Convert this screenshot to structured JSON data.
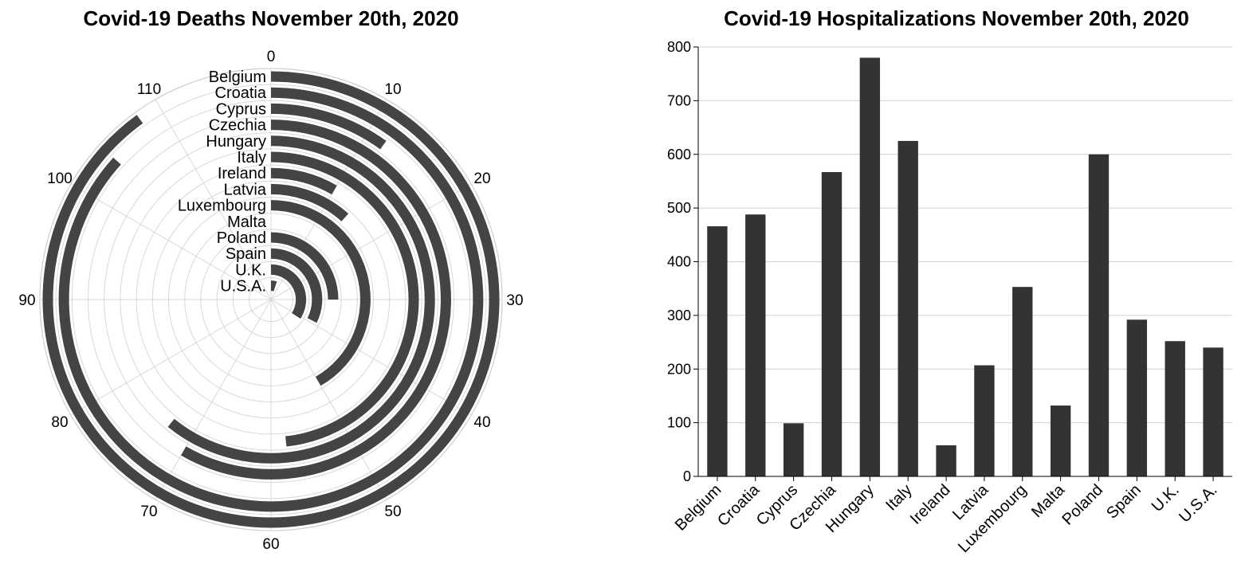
{
  "chart_data": [
    {
      "type": "radial-bar",
      "title": "Covid-19 Deaths November 20th, 2020",
      "categories": [
        "Belgium",
        "Croatia",
        "Cyprus",
        "Czechia",
        "Hungary",
        "Italy",
        "Ireland",
        "Latvia",
        "Luxembourg",
        "Malta",
        "Poland",
        "Spain",
        "U.K.",
        "U.S.A."
      ],
      "values": [
        108,
        104,
        12,
        70,
        73,
        58,
        10,
        14,
        50,
        0,
        30,
        39,
        41,
        6
      ],
      "angle_ticks": [
        0,
        10,
        20,
        30,
        40,
        50,
        60,
        70,
        80,
        90,
        100,
        110
      ],
      "angle_max": 120,
      "bar_color": "#444444",
      "grid": true
    },
    {
      "type": "bar",
      "title": "Covid-19 Hospitalizations November 20th, 2020",
      "categories": [
        "Belgium",
        "Croatia",
        "Cyprus",
        "Czechia",
        "Hungary",
        "Italy",
        "Ireland",
        "Latvia",
        "Luxembourg",
        "Malta",
        "Poland",
        "Spain",
        "U.K.",
        "U.S.A."
      ],
      "values": [
        466,
        488,
        99,
        567,
        780,
        625,
        58,
        207,
        353,
        132,
        600,
        292,
        252,
        240
      ],
      "ylim": [
        0,
        800
      ],
      "yticks": [
        0,
        100,
        200,
        300,
        400,
        500,
        600,
        700,
        800
      ],
      "bar_color": "#333333",
      "grid": true
    }
  ]
}
